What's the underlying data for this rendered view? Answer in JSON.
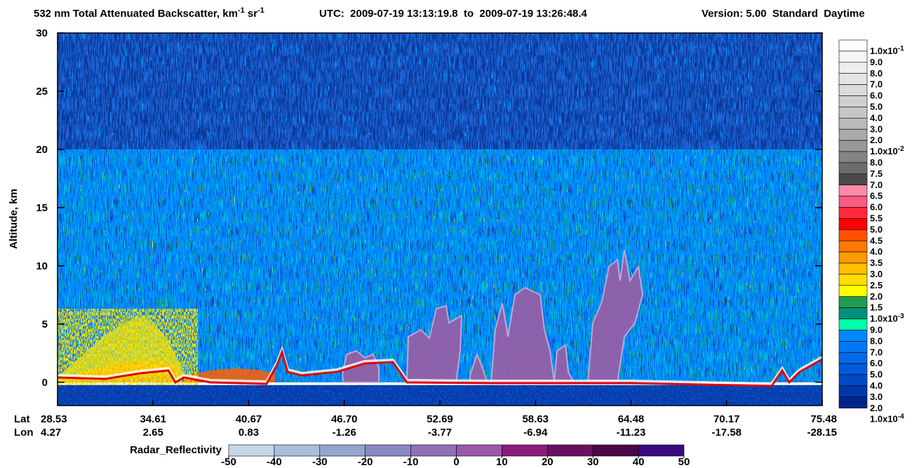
{
  "chart_data": {
    "type": "heatmap",
    "title_parts": [
      "532 nm Total Attenuated Backscatter, km",
      "-1",
      " sr",
      "-1"
    ],
    "utc": "UTC:  2009-07-19 13:13:19.8  to  2009-07-19 13:26:48.4",
    "version": "Version: 5.00  Standard  Daytime",
    "ylabel": "Altitude, km",
    "ylim": [
      -2,
      30
    ],
    "yticks": [
      0,
      5,
      10,
      15,
      20,
      25,
      30
    ],
    "x_row_labels": [
      "Lat",
      "Lon"
    ],
    "lat": [
      "28.53",
      "34.61",
      "40.67",
      "46.70",
      "52.69",
      "58.63",
      "64.48",
      "70.17",
      "75.48"
    ],
    "lon": [
      "4.27",
      "2.65",
      "0.83",
      "-1.26",
      "-3.77",
      "-6.94",
      "-11.23",
      "-17.58",
      "-28.15"
    ],
    "colorbar": {
      "labels": [
        {
          "text": "1.0x10",
          "sup": "-1"
        },
        "9.0",
        "8.0",
        "7.0",
        "6.0",
        "5.0",
        "4.0",
        "3.0",
        "2.0",
        {
          "text": "1.0x10",
          "sup": "-2"
        },
        "8.0",
        "7.5",
        "7.0",
        "6.5",
        "6.0",
        "5.5",
        "5.0",
        "4.5",
        "4.0",
        "3.5",
        "3.0",
        "2.5",
        "2.0",
        "1.5",
        {
          "text": "1.0x10",
          "sup": "-3"
        },
        "9.0",
        "8.0",
        "7.0",
        "6.0",
        "5.0",
        "4.0",
        "3.0",
        "2.0",
        {
          "text": "1.0x10",
          "sup": "-4"
        }
      ],
      "colors": [
        "#ffffff",
        "#f6f6f6",
        "#eeeeee",
        "#e4e4e4",
        "#dadada",
        "#d0d0d0",
        "#c6c6c6",
        "#bababa",
        "#aaaaaa",
        "#989898",
        "#848484",
        "#6c6c6c",
        "#4a4a4a",
        "#ff8aa8",
        "#ff5a82",
        "#ff2a3a",
        "#ff0000",
        "#ff5000",
        "#ff7800",
        "#ff9a00",
        "#ffbe00",
        "#ffde00",
        "#ffff00",
        "#1e9c50",
        "#00907c",
        "#00ffa8",
        "#0088ff",
        "#0078f4",
        "#006ae8",
        "#005adc",
        "#004ac8",
        "#0036a8",
        "#00268c"
      ]
    },
    "radar_colorbar": {
      "label": "Radar_Reflectivity",
      "ticks": [
        -50,
        -40,
        -30,
        -20,
        -10,
        0,
        10,
        20,
        30,
        40,
        50
      ],
      "colors": [
        "#c6d6e8",
        "#a8bedb",
        "#93a6d0",
        "#8c88c4",
        "#9070b6",
        "#9a5aa8",
        "#8a1c7c",
        "#6a1060",
        "#4a0848",
        "#3a0a82"
      ]
    }
  }
}
